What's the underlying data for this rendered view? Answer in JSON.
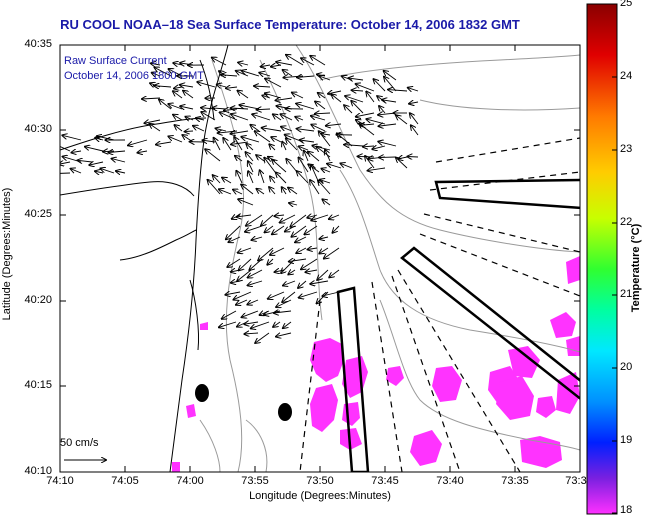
{
  "title": "RU COOL  NOAA–18  Sea Surface Temperature:  October 14, 2006 1832 GMT",
  "legend_text": {
    "line1": "Raw Surface Current",
    "line2": "October 14, 2006 1800 GMT"
  },
  "scale_arrow": {
    "label": "50 cm/s",
    "speed_cm_s": 50
  },
  "axes": {
    "x_label": "Longitude (Degrees:Minutes)",
    "y_label": "Latitude (Degrees:Minutes)",
    "x_ticks": [
      "74:10",
      "74:05",
      "74:00",
      "73:55",
      "73:50",
      "73:45",
      "73:40",
      "73:35",
      "73:3"
    ],
    "y_ticks": [
      "40:35",
      "40:30",
      "40:25",
      "40:20",
      "40:15",
      "40:10"
    ]
  },
  "colorbar": {
    "label": "Temperature (°C)",
    "ticks": [
      "25",
      "24",
      "23",
      "22",
      "21",
      "20",
      "19",
      "18"
    ],
    "range": [
      18,
      25
    ]
  },
  "colors": {
    "sst_patch": "#ff33ff",
    "title": "#1a1aa8",
    "land_outline": "#000000",
    "bathymetry": "#9a9a9a"
  }
}
